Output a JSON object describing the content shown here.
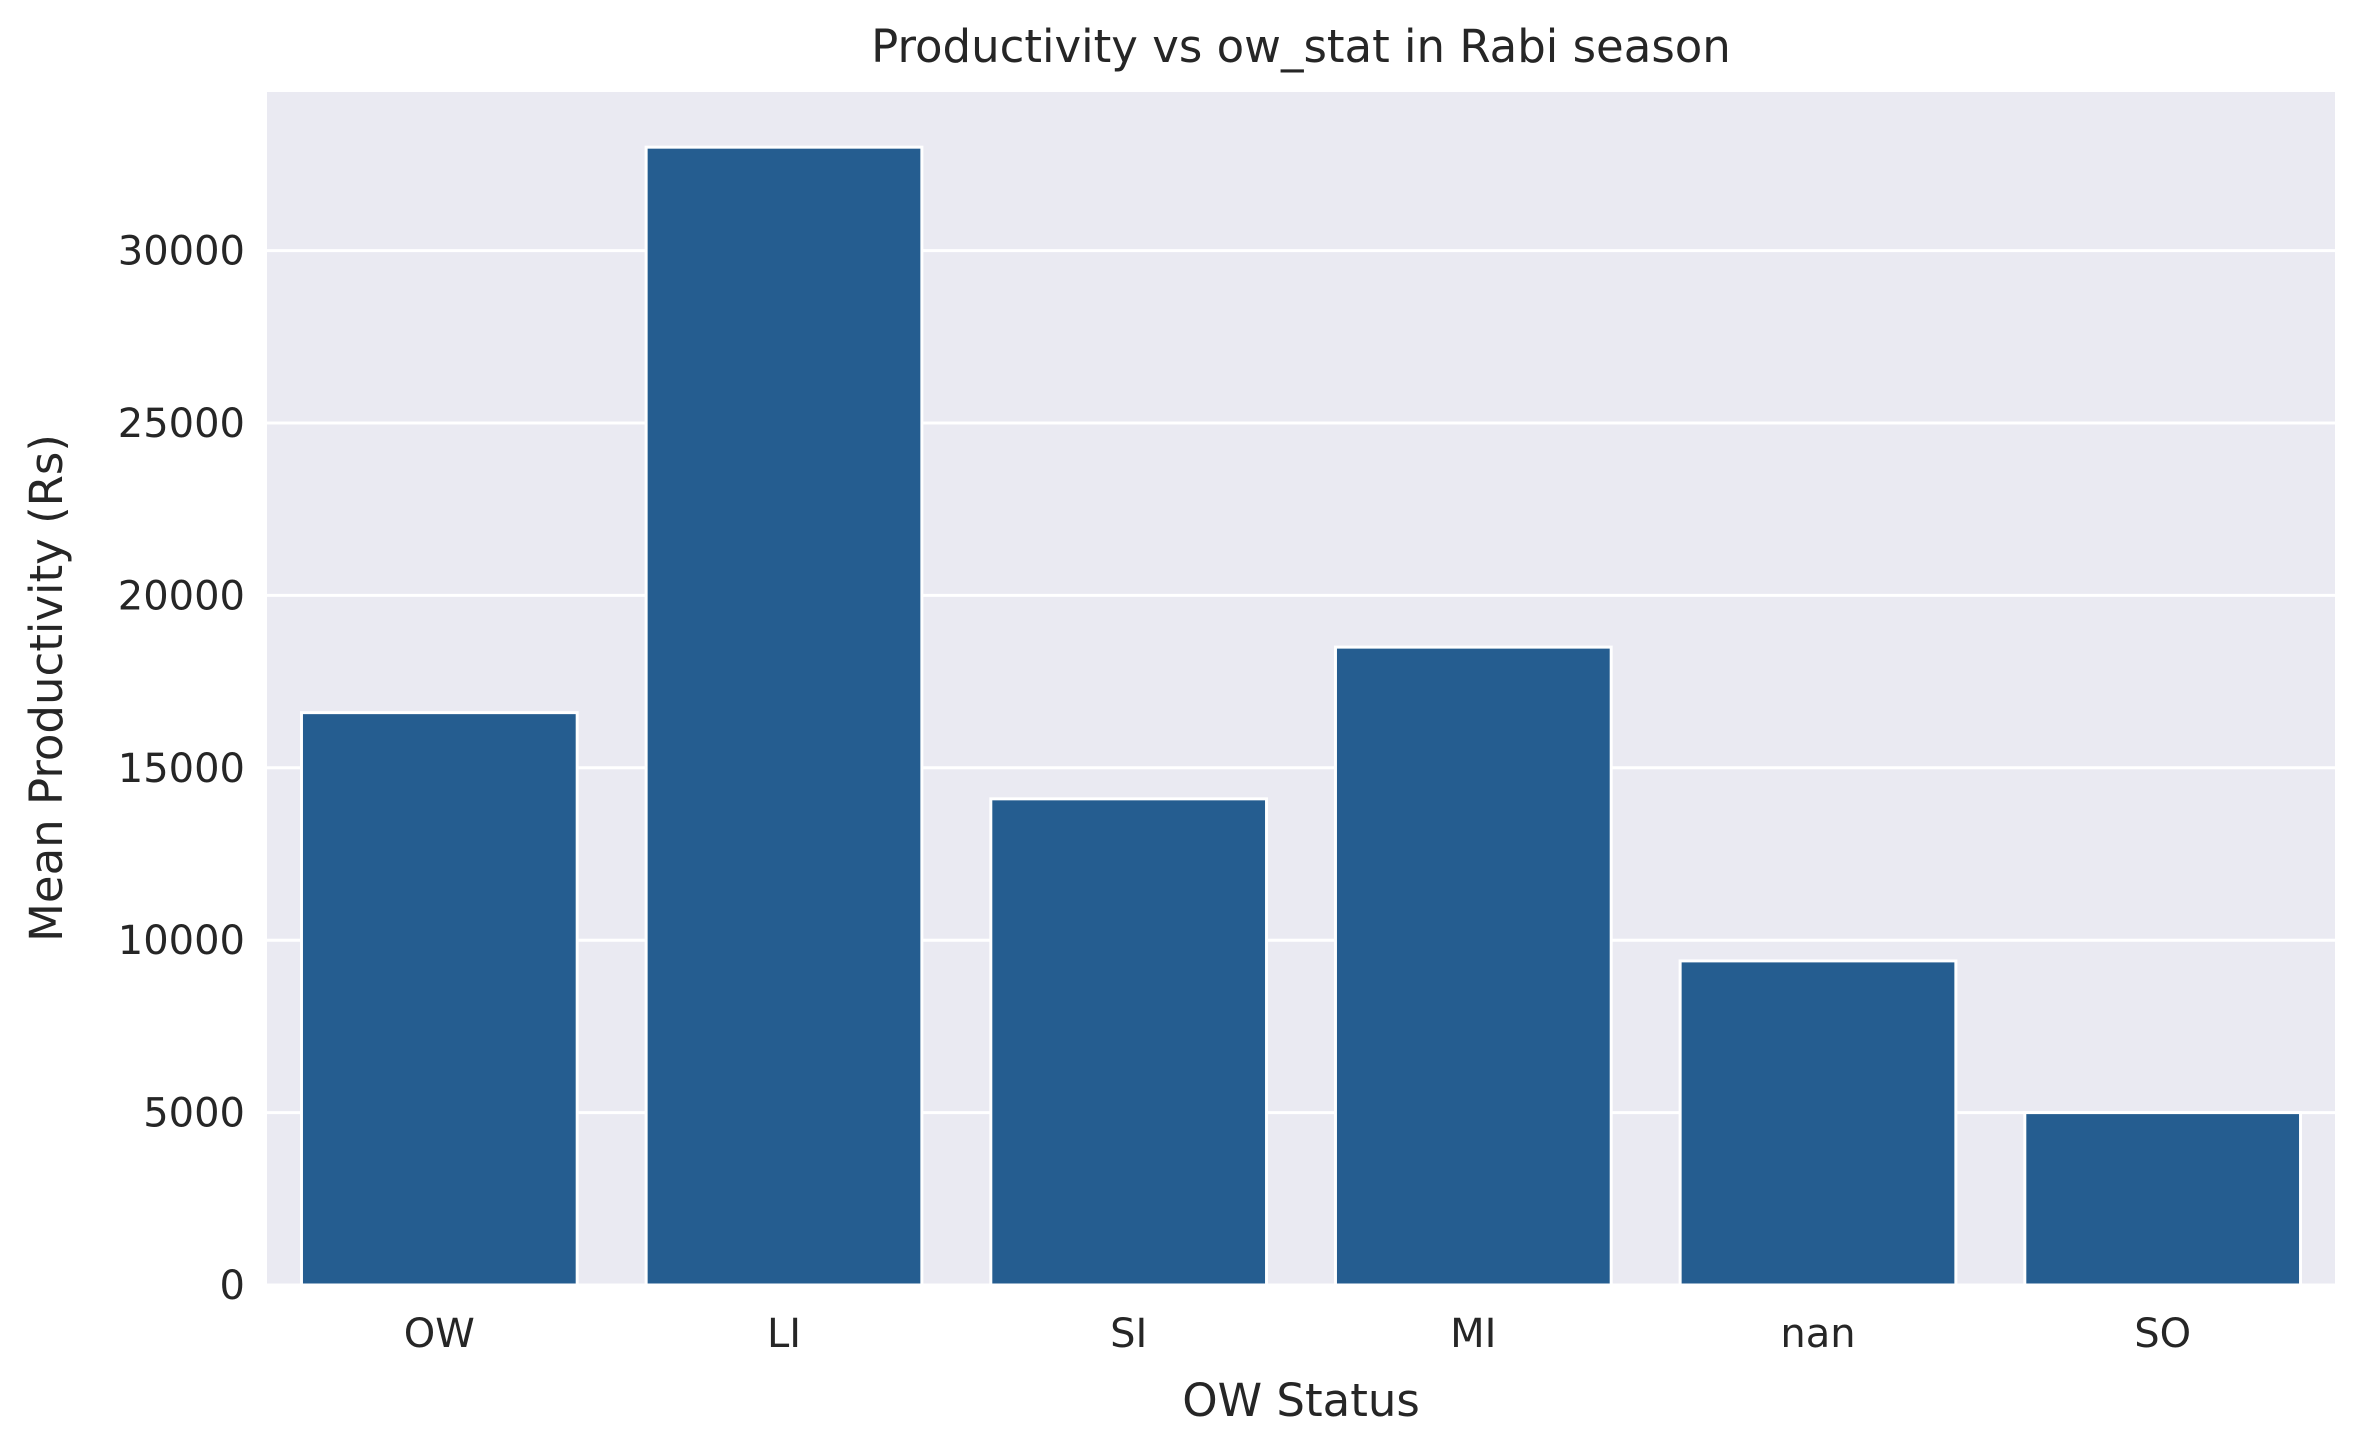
{
  "chart_data": {
    "type": "bar",
    "title": "Productivity vs ow_stat in Rabi season",
    "xlabel": "OW Status",
    "ylabel": "Mean Productivity (Rs)",
    "categories": [
      "OW",
      "LI",
      "SI",
      "MI",
      "nan",
      "SO"
    ],
    "values": [
      16600,
      33000,
      14100,
      18500,
      9400,
      5000
    ],
    "ylim": [
      0,
      34600
    ],
    "yticks": [
      0,
      5000,
      10000,
      15000,
      20000,
      25000,
      30000
    ],
    "grid": true,
    "colors": {
      "bar": "#255D90",
      "plot_background": "#EAEAF2",
      "grid": "#FFFFFF",
      "text": "#262626"
    }
  }
}
